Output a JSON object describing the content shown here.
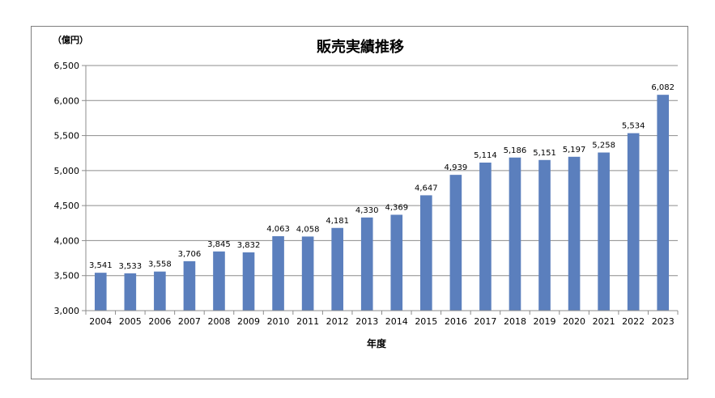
{
  "chart_data": {
    "type": "bar",
    "title": "販売実績推移",
    "unit_label": "（億円）",
    "xlabel": "年度",
    "ylabel": "",
    "categories": [
      "2004",
      "2005",
      "2006",
      "2007",
      "2008",
      "2009",
      "2010",
      "2011",
      "2012",
      "2013",
      "2014",
      "2015",
      "2016",
      "2017",
      "2018",
      "2019",
      "2020",
      "2021",
      "2022",
      "2023"
    ],
    "values": [
      3541,
      3533,
      3558,
      3706,
      3845,
      3832,
      4063,
      4058,
      4181,
      4330,
      4369,
      4647,
      4939,
      5114,
      5186,
      5151,
      5197,
      5258,
      5534,
      6082
    ],
    "value_labels": [
      "3,541",
      "3,533",
      "3,558",
      "3,706",
      "3,845",
      "3,832",
      "4,063",
      "4,058",
      "4,181",
      "4,330",
      "4,369",
      "4,647",
      "4,939",
      "5,114",
      "5,186",
      "5,151",
      "5,197",
      "5,258",
      "5,534",
      "6,082"
    ],
    "ylim": [
      3000,
      6500
    ],
    "yticks": [
      3000,
      3500,
      4000,
      4500,
      5000,
      5500,
      6000,
      6500
    ],
    "ytick_labels": [
      "3,000",
      "3,500",
      "4,000",
      "4,500",
      "5,000",
      "5,500",
      "6,000",
      "6,500"
    ],
    "grid": true,
    "legend": "none",
    "bar_color": "#5b7fbd"
  }
}
